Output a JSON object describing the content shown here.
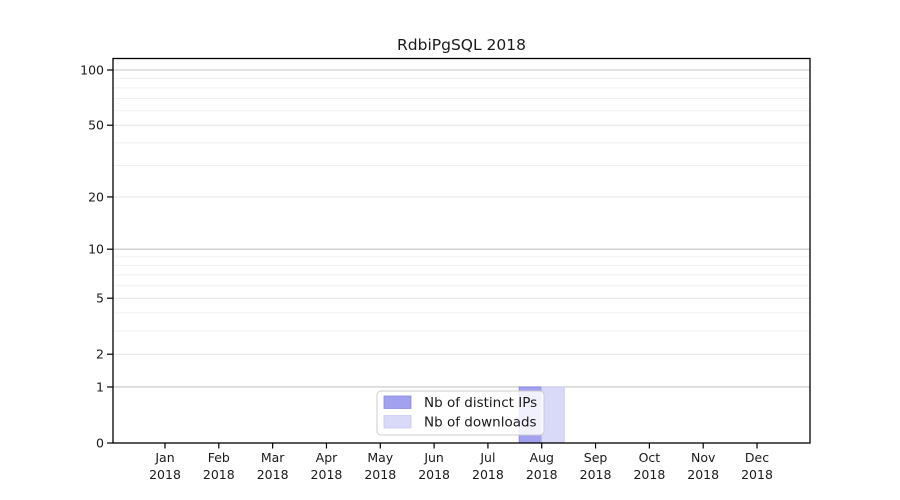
{
  "figure": {
    "title": "RdbiPgSQL 2018"
  },
  "chart_data": {
    "type": "bar",
    "title": "RdbiPgSQL 2018",
    "categories": [
      "Jan",
      "Feb",
      "Mar",
      "Apr",
      "May",
      "Jun",
      "Jul",
      "Aug",
      "Sep",
      "Oct",
      "Nov",
      "Dec"
    ],
    "category_year": "2018",
    "series": [
      {
        "name": "Nb of distinct IPs",
        "color": "#a1a1ef",
        "edge_color": "#8b8be4",
        "values": [
          0,
          0,
          0,
          0,
          0,
          0,
          0,
          1,
          0,
          0,
          0,
          0
        ]
      },
      {
        "name": "Nb of downloads",
        "color": "#d9d9f8",
        "edge_color": "#c9c9f2",
        "values": [
          0,
          0,
          0,
          0,
          0,
          0,
          0,
          1,
          0,
          0,
          0,
          0
        ]
      }
    ],
    "xlabel": "",
    "ylabel": "",
    "yscale": "log1p",
    "ylim": [
      0,
      115
    ],
    "ytick_values": [
      0,
      1,
      2,
      5,
      10,
      20,
      50,
      100
    ],
    "ytick_labels": [
      "0",
      "1",
      "2",
      "5",
      "10",
      "20",
      "50",
      "100"
    ],
    "grid": "horizontal",
    "gridlines_strong": [
      1,
      10,
      100
    ],
    "gridlines_mid": [
      2,
      5,
      20,
      50
    ],
    "gridlines_minor": [
      3,
      4,
      6,
      7,
      8,
      9,
      30,
      40,
      60,
      70,
      80,
      90
    ],
    "legend": {
      "position": "inside-bottom-center",
      "labels": [
        "Nb of distinct IPs",
        "Nb of downloads"
      ]
    }
  },
  "colors": {
    "background": "#ffffff",
    "frame": "#000000",
    "tick": "#000000",
    "text": "#1a1a1a",
    "grid_strong": "#c5c5c5",
    "grid_mid": "#e4e4e4",
    "grid_minor": "#f1f1f1",
    "legend_border": "#cccccc",
    "legend_bg": "rgba(255,255,255,0.85)"
  }
}
